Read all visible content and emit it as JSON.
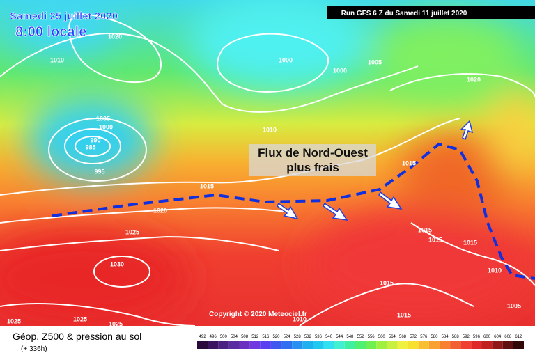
{
  "header": {
    "date": "Samedi 25 juillet 2020",
    "time": "8:00 locale",
    "run": "Run GFS 6 Z du Samedi 11 juillet 2020"
  },
  "annotation": {
    "line1": "Flux de Nord-Ouest",
    "line2": "plus frais"
  },
  "copyright": "Copyright © 2020 Meteociel.fr",
  "footer": {
    "title": "Géop. Z500 & pression au sol",
    "lead": "(+ 336h)"
  },
  "isobar_labels": [
    1020,
    1010,
    1000,
    1000,
    1005,
    1020,
    1005,
    1000,
    990,
    985,
    995,
    1010,
    1015,
    1015,
    1020,
    1025,
    1030,
    1015,
    1015,
    1015,
    1010,
    1015,
    1015,
    1005,
    1025,
    1025,
    1025,
    1010
  ],
  "colorbar": {
    "ticks": [
      492,
      496,
      500,
      504,
      508,
      512,
      516,
      520,
      524,
      528,
      532,
      536,
      540,
      544,
      548,
      552,
      556,
      560,
      564,
      568,
      572,
      576,
      580,
      584,
      588,
      592,
      596,
      600,
      604,
      608,
      612
    ],
    "colors": [
      "#2a0a3a",
      "#3c1560",
      "#4a2080",
      "#5a2aa0",
      "#6a30c0",
      "#7038e0",
      "#5a40f0",
      "#4058f0",
      "#3070f0",
      "#2890f0",
      "#20b0f0",
      "#20c8f0",
      "#30e0f0",
      "#40f0d0",
      "#40f0a0",
      "#50f070",
      "#70f050",
      "#a0f040",
      "#c8f040",
      "#f0f040",
      "#f8e030",
      "#f8c030",
      "#f8a030",
      "#f88030",
      "#f06030",
      "#f04030",
      "#e02828",
      "#c02020",
      "#901818",
      "#601010",
      "#300808"
    ]
  }
}
